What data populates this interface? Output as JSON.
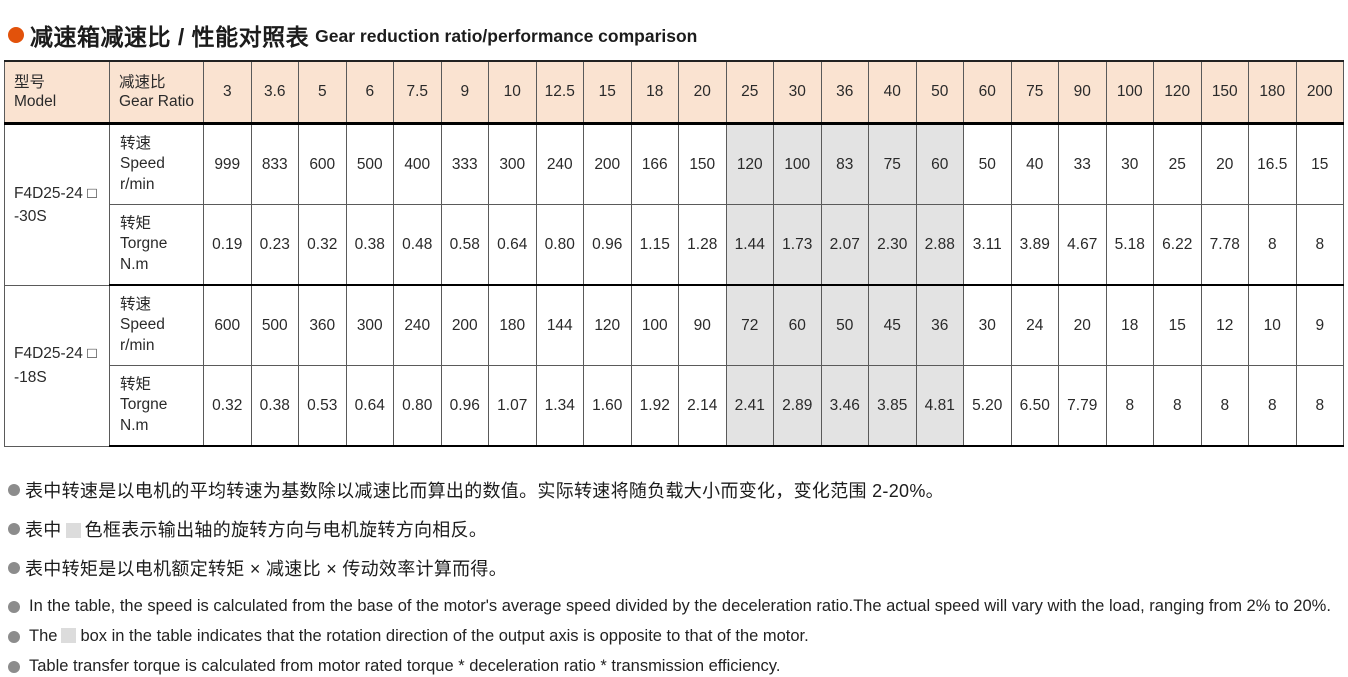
{
  "page": {
    "title_zh": "减速箱减速比 / 性能对照表",
    "title_en": "Gear reduction ratio/performance comparison"
  },
  "colors": {
    "title_bullet": "#e2520b",
    "note_bullet": "#8c8c8c",
    "header_bg": "#fae3d1",
    "shaded_cell_bg": "#e3e3e3",
    "swatch_fill": "#dcdcdc",
    "thin_border": "#5a5a5a",
    "thick_border": "#000000"
  },
  "table": {
    "header": {
      "model_zh": "型号",
      "model_en": "Model",
      "ratio_zh": "减速比",
      "ratio_en": "Gear Ratio",
      "ratios": [
        "3",
        "3.6",
        "5",
        "6",
        "7.5",
        "9",
        "10",
        "12.5",
        "15",
        "18",
        "20",
        "25",
        "30",
        "36",
        "40",
        "50",
        "60",
        "75",
        "90",
        "100",
        "120",
        "150",
        "180",
        "200"
      ]
    },
    "shaded_ratio_indices": [
      11,
      12,
      13,
      14,
      15
    ],
    "groups": [
      {
        "model_line1": "F4D25-24 □",
        "model_line2": "-30S",
        "rows": [
          {
            "label_lines": [
              "转速",
              "Speed",
              "r/min"
            ],
            "values": [
              "999",
              "833",
              "600",
              "500",
              "400",
              "333",
              "300",
              "240",
              "200",
              "166",
              "150",
              "120",
              "100",
              "83",
              "75",
              "60",
              "50",
              "40",
              "33",
              "30",
              "25",
              "20",
              "16.5",
              "15"
            ]
          },
          {
            "label_lines": [
              "转矩",
              "Torgne",
              "N.m"
            ],
            "values": [
              "0.19",
              "0.23",
              "0.32",
              "0.38",
              "0.48",
              "0.58",
              "0.64",
              "0.80",
              "0.96",
              "1.15",
              "1.28",
              "1.44",
              "1.73",
              "2.07",
              "2.30",
              "2.88",
              "3.11",
              "3.89",
              "4.67",
              "5.18",
              "6.22",
              "7.78",
              "8",
              "8"
            ]
          }
        ]
      },
      {
        "model_line1": "F4D25-24 □",
        "model_line2": "-18S",
        "rows": [
          {
            "label_lines": [
              "转速",
              "Speed",
              "r/min"
            ],
            "values": [
              "600",
              "500",
              "360",
              "300",
              "240",
              "200",
              "180",
              "144",
              "120",
              "100",
              "90",
              "72",
              "60",
              "50",
              "45",
              "36",
              "30",
              "24",
              "20",
              "18",
              "15",
              "12",
              "10",
              "9"
            ]
          },
          {
            "label_lines": [
              "转矩",
              "Torgne",
              "N.m"
            ],
            "values": [
              "0.32",
              "0.38",
              "0.53",
              "0.64",
              "0.80",
              "0.96",
              "1.07",
              "1.34",
              "1.60",
              "1.92",
              "2.14",
              "2.41",
              "2.89",
              "3.46",
              "3.85",
              "4.81",
              "5.20",
              "6.50",
              "7.79",
              "8",
              "8",
              "8",
              "8",
              "8"
            ]
          }
        ]
      }
    ]
  },
  "notes": [
    {
      "lang": "zh",
      "segments": [
        {
          "text": "表中转速是以电机的平均转速为基数除以减速比而算出的数值。实际转速将随负载大小而变化，变化范围 2-20%。"
        }
      ]
    },
    {
      "lang": "zh",
      "segments": [
        {
          "text": "表中"
        },
        {
          "swatch": true
        },
        {
          "text": "色框表示输出轴的旋转方向与电机旋转方向相反。"
        }
      ]
    },
    {
      "lang": "zh",
      "segments": [
        {
          "text": "表中转矩是以电机额定转矩 × 减速比 × 传动效率计算而得。"
        }
      ]
    },
    {
      "lang": "en",
      "segments": [
        {
          "text": "In the table, the speed is calculated from the base of the motor's average speed  divided by the deceleration ratio.The actual speed will vary with the load, ranging from 2% to 20%."
        }
      ]
    },
    {
      "lang": "en",
      "segments": [
        {
          "text": "The"
        },
        {
          "swatch": true
        },
        {
          "text": "box in the table indicates that the rotation direction of the output axis is opposite to that of the motor."
        }
      ]
    },
    {
      "lang": "en",
      "segments": [
        {
          "text": "Table transfer torque is calculated from motor rated torque * deceleration ratio * transmission efficiency."
        }
      ]
    }
  ]
}
